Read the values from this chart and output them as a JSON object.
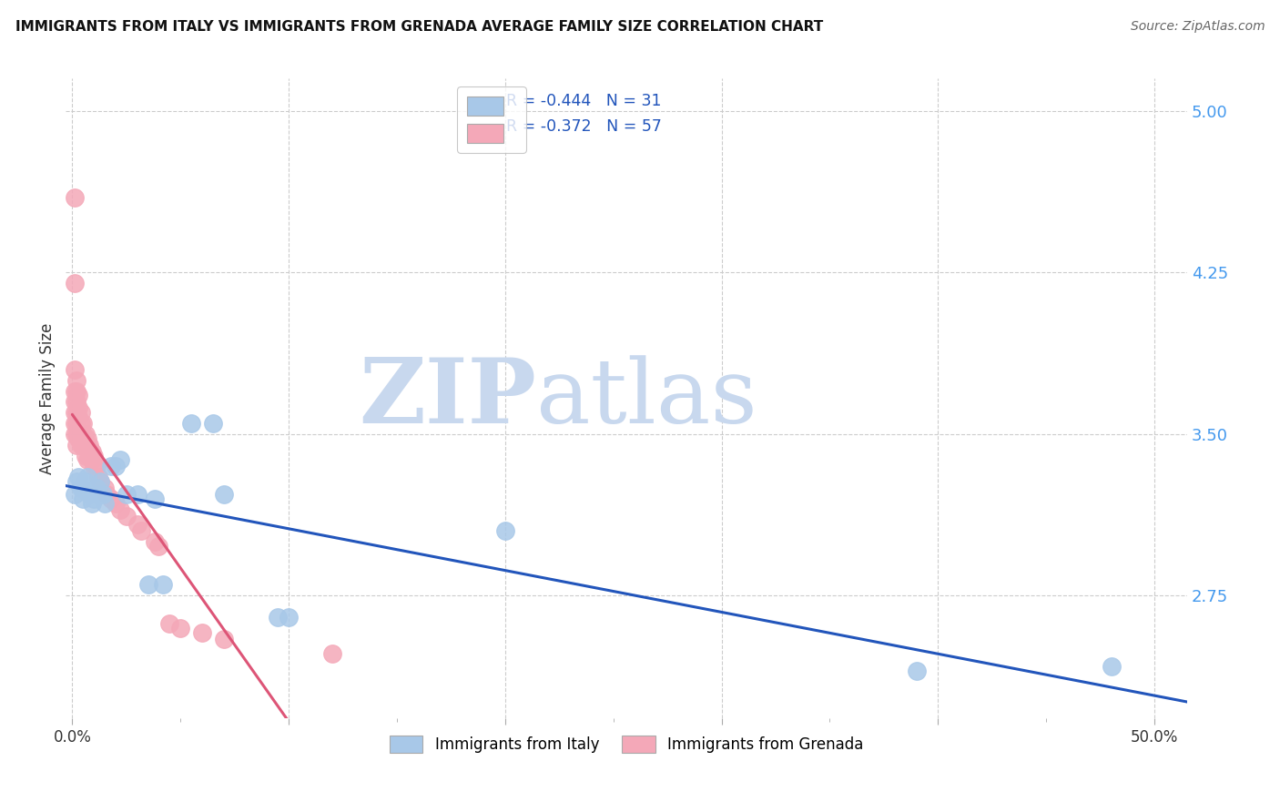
{
  "title": "IMMIGRANTS FROM ITALY VS IMMIGRANTS FROM GRENADA AVERAGE FAMILY SIZE CORRELATION CHART",
  "source": "Source: ZipAtlas.com",
  "ylabel": "Average Family Size",
  "yticks": [
    2.75,
    3.5,
    4.25,
    5.0
  ],
  "ymin": 2.18,
  "ymax": 5.15,
  "xmin": -0.003,
  "xmax": 0.515,
  "italy_color": "#a8c8e8",
  "grenada_color": "#f4a8b8",
  "italy_line_color": "#2255bb",
  "grenada_line_color": "#dd5577",
  "italy_R": -0.444,
  "italy_N": 31,
  "grenada_R": -0.372,
  "grenada_N": 57,
  "italy_x": [
    0.001,
    0.002,
    0.003,
    0.004,
    0.005,
    0.006,
    0.007,
    0.008,
    0.009,
    0.01,
    0.011,
    0.012,
    0.013,
    0.014,
    0.015,
    0.018,
    0.02,
    0.022,
    0.025,
    0.03,
    0.035,
    0.038,
    0.042,
    0.055,
    0.065,
    0.07,
    0.095,
    0.1,
    0.2,
    0.39,
    0.48
  ],
  "italy_y": [
    3.22,
    3.28,
    3.3,
    3.25,
    3.2,
    3.28,
    3.3,
    3.22,
    3.18,
    3.2,
    3.25,
    3.22,
    3.28,
    3.22,
    3.18,
    3.35,
    3.35,
    3.38,
    3.22,
    3.22,
    2.8,
    3.2,
    2.8,
    3.55,
    3.55,
    3.22,
    2.65,
    2.65,
    3.05,
    2.4,
    2.42
  ],
  "grenada_x": [
    0.001,
    0.001,
    0.001,
    0.001,
    0.001,
    0.001,
    0.001,
    0.001,
    0.002,
    0.002,
    0.002,
    0.002,
    0.002,
    0.002,
    0.002,
    0.003,
    0.003,
    0.003,
    0.003,
    0.003,
    0.004,
    0.004,
    0.004,
    0.004,
    0.005,
    0.005,
    0.005,
    0.006,
    0.006,
    0.006,
    0.007,
    0.007,
    0.007,
    0.008,
    0.008,
    0.009,
    0.009,
    0.01,
    0.01,
    0.011,
    0.012,
    0.013,
    0.015,
    0.016,
    0.018,
    0.02,
    0.022,
    0.025,
    0.03,
    0.032,
    0.038,
    0.04,
    0.045,
    0.05,
    0.06,
    0.07,
    0.12
  ],
  "grenada_y": [
    4.6,
    4.2,
    3.8,
    3.7,
    3.65,
    3.6,
    3.55,
    3.5,
    3.75,
    3.7,
    3.65,
    3.6,
    3.55,
    3.5,
    3.45,
    3.68,
    3.62,
    3.58,
    3.52,
    3.48,
    3.6,
    3.55,
    3.5,
    3.45,
    3.55,
    3.5,
    3.45,
    3.5,
    3.45,
    3.4,
    3.48,
    3.43,
    3.38,
    3.45,
    3.4,
    3.42,
    3.38,
    3.4,
    3.35,
    3.35,
    3.3,
    3.28,
    3.25,
    3.22,
    3.2,
    3.18,
    3.15,
    3.12,
    3.08,
    3.05,
    3.0,
    2.98,
    2.62,
    2.6,
    2.58,
    2.55,
    2.48
  ],
  "watermark_zip": "ZIP",
  "watermark_atlas": "atlas",
  "watermark_color_zip": "#c8d8ee",
  "watermark_color_atlas": "#c8d8ee",
  "legend_labels": [
    "Immigrants from Italy",
    "Immigrants from Grenada"
  ],
  "background_color": "#ffffff",
  "grid_color": "#cccccc",
  "xtick_positions": [
    0.0,
    0.1,
    0.2,
    0.3,
    0.4,
    0.5
  ],
  "xtick_show_labels": [
    true,
    false,
    false,
    false,
    false,
    true
  ],
  "xtick_labels": [
    "0.0%",
    "",
    "",
    "",
    "",
    "50.0%"
  ]
}
